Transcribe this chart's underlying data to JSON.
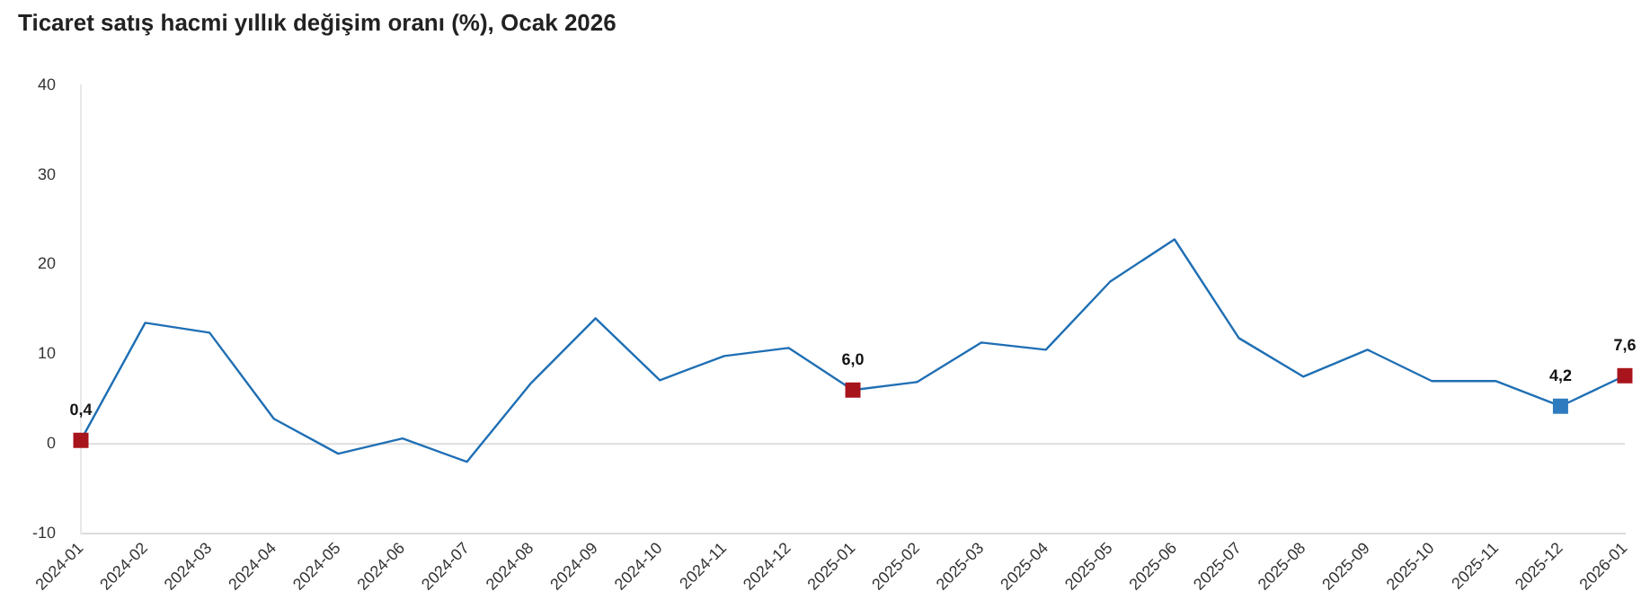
{
  "chart_data": {
    "type": "line",
    "title": "Ticaret satış hacmi yıllık değişim oranı (%), Ocak 2026",
    "categories": [
      "2024-01",
      "2024-02",
      "2024-03",
      "2024-04",
      "2024-05",
      "2024-06",
      "2024-07",
      "2024-08",
      "2024-09",
      "2024-10",
      "2024-11",
      "2024-12",
      "2025-01",
      "2025-02",
      "2025-03",
      "2025-04",
      "2025-05",
      "2025-06",
      "2025-07",
      "2025-08",
      "2025-09",
      "2025-10",
      "2025-11",
      "2025-12",
      "2026-01"
    ],
    "series": [
      {
        "type": "line",
        "color": "#1f6fb4",
        "marker": "none",
        "values": [
          0.4,
          13.5,
          12.4,
          2.8,
          -1.1,
          0.6,
          -2.0,
          6.8,
          14.0,
          7.1,
          9.8,
          10.7,
          6.0,
          6.9,
          11.3,
          10.5,
          18.1,
          22.8,
          11.8,
          7.5,
          10.5,
          7.0,
          7.0,
          4.2,
          7.6
        ]
      },
      {
        "type": "scatter",
        "marker": "square",
        "values": [
          0.4,
          null,
          null,
          null,
          null,
          null,
          null,
          null,
          null,
          null,
          null,
          null,
          6.0,
          null,
          null,
          null,
          null,
          null,
          null,
          null,
          null,
          null,
          null,
          4.2,
          7.6
        ],
        "colors": [
          "#a8141c",
          null,
          null,
          null,
          null,
          null,
          null,
          null,
          null,
          null,
          null,
          null,
          "#a8141c",
          null,
          null,
          null,
          null,
          null,
          null,
          null,
          null,
          null,
          null,
          "#2f7bbf",
          "#a8141c"
        ],
        "value_labels": [
          "0,4",
          null,
          null,
          null,
          null,
          null,
          null,
          null,
          null,
          null,
          null,
          null,
          "6,0",
          null,
          null,
          null,
          null,
          null,
          null,
          null,
          null,
          null,
          null,
          "4,2",
          "7,6"
        ]
      }
    ],
    "ylim": [
      -10,
      40
    ],
    "yticks": [
      -10,
      0,
      10,
      20,
      30,
      40
    ],
    "grid": false,
    "legend": false,
    "ref_lines": [
      {
        "axis": "y",
        "value": 0,
        "color": "#dddddd"
      }
    ]
  }
}
